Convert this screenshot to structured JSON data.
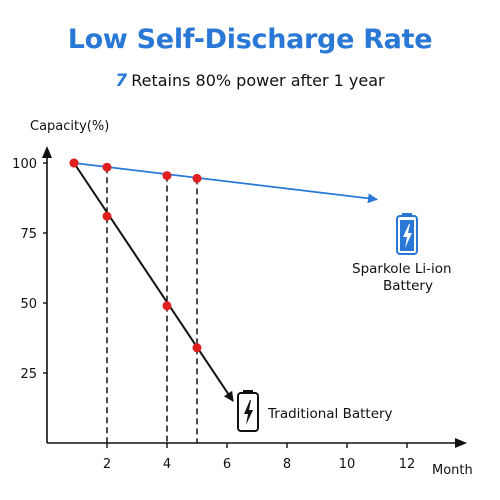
{
  "header": {
    "title": "Low Self-Discharge Rate",
    "subtitle_mark": "7",
    "subtitle": "Retains 80% power after 1 year"
  },
  "colors": {
    "title": "#2a78d6",
    "sparkole_line": "#2a78d6",
    "traditional_line": "#111111",
    "points": "#e02020",
    "icon_blue": "#2a78d6"
  },
  "icons": {
    "sparkole": "battery-blue-bolt-icon",
    "traditional": "battery-black-bolt-icon"
  },
  "chart_data": {
    "type": "line",
    "ylabel": "Capacity(%)",
    "xlabel": "Month",
    "x_ticks": [
      2,
      4,
      6,
      8,
      10,
      12
    ],
    "y_ticks": [
      25,
      50,
      75,
      100
    ],
    "xlim": [
      0,
      14.3
    ],
    "ylim": [
      0,
      117
    ],
    "grid": false,
    "series": [
      {
        "name": "Sparkole Li-ion Battery",
        "label_lines": [
          "Sparkole Li-ion",
          "Battery"
        ],
        "x": [
          0.9,
          2,
          4,
          5
        ],
        "y": [
          100,
          98.5,
          95.5,
          94.5
        ],
        "end": [
          11,
          87
        ]
      },
      {
        "name": "Traditional Battery",
        "label_lines": [
          "Traditional Battery"
        ],
        "x": [
          0.9,
          2,
          4,
          5
        ],
        "y": [
          100,
          81,
          49,
          34
        ],
        "end": [
          6.2,
          15
        ]
      }
    ],
    "dropline_x": [
      2,
      4,
      5
    ]
  }
}
